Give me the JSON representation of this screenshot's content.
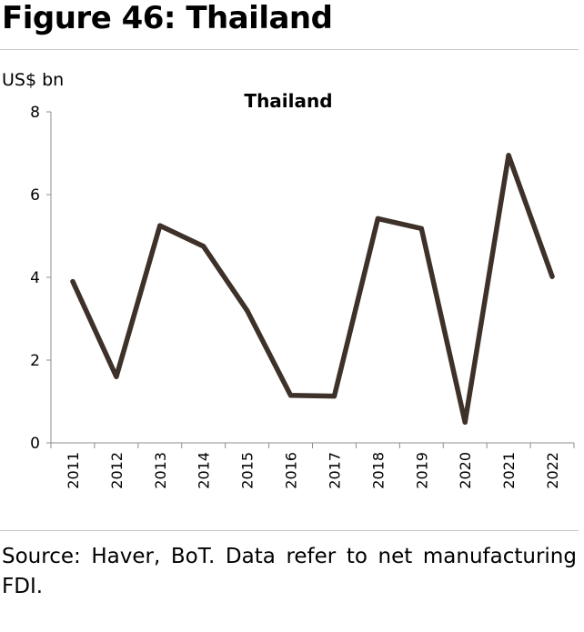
{
  "figure_title": "Figure 46: Thailand",
  "unit_label": "US$ bn",
  "source": "Source: Haver, BoT. Data refer to net manufacturing FDI.",
  "chart_data": {
    "type": "line",
    "title": "Thailand",
    "xlabel": "",
    "ylabel": "US$ bn",
    "categories": [
      "2011",
      "2012",
      "2013",
      "2014",
      "2015",
      "2016",
      "2017",
      "2018",
      "2019",
      "2020",
      "2021",
      "2022"
    ],
    "series": [
      {
        "values": [
          3.9,
          1.6,
          5.25,
          4.75,
          3.2,
          1.15,
          1.13,
          5.42,
          5.18,
          0.5,
          6.95,
          4.02
        ],
        "color": "#3d3129"
      }
    ],
    "ylim": [
      0,
      8
    ],
    "yticks": [
      0,
      2,
      4,
      6,
      8
    ],
    "grid": false,
    "legend": "none"
  }
}
